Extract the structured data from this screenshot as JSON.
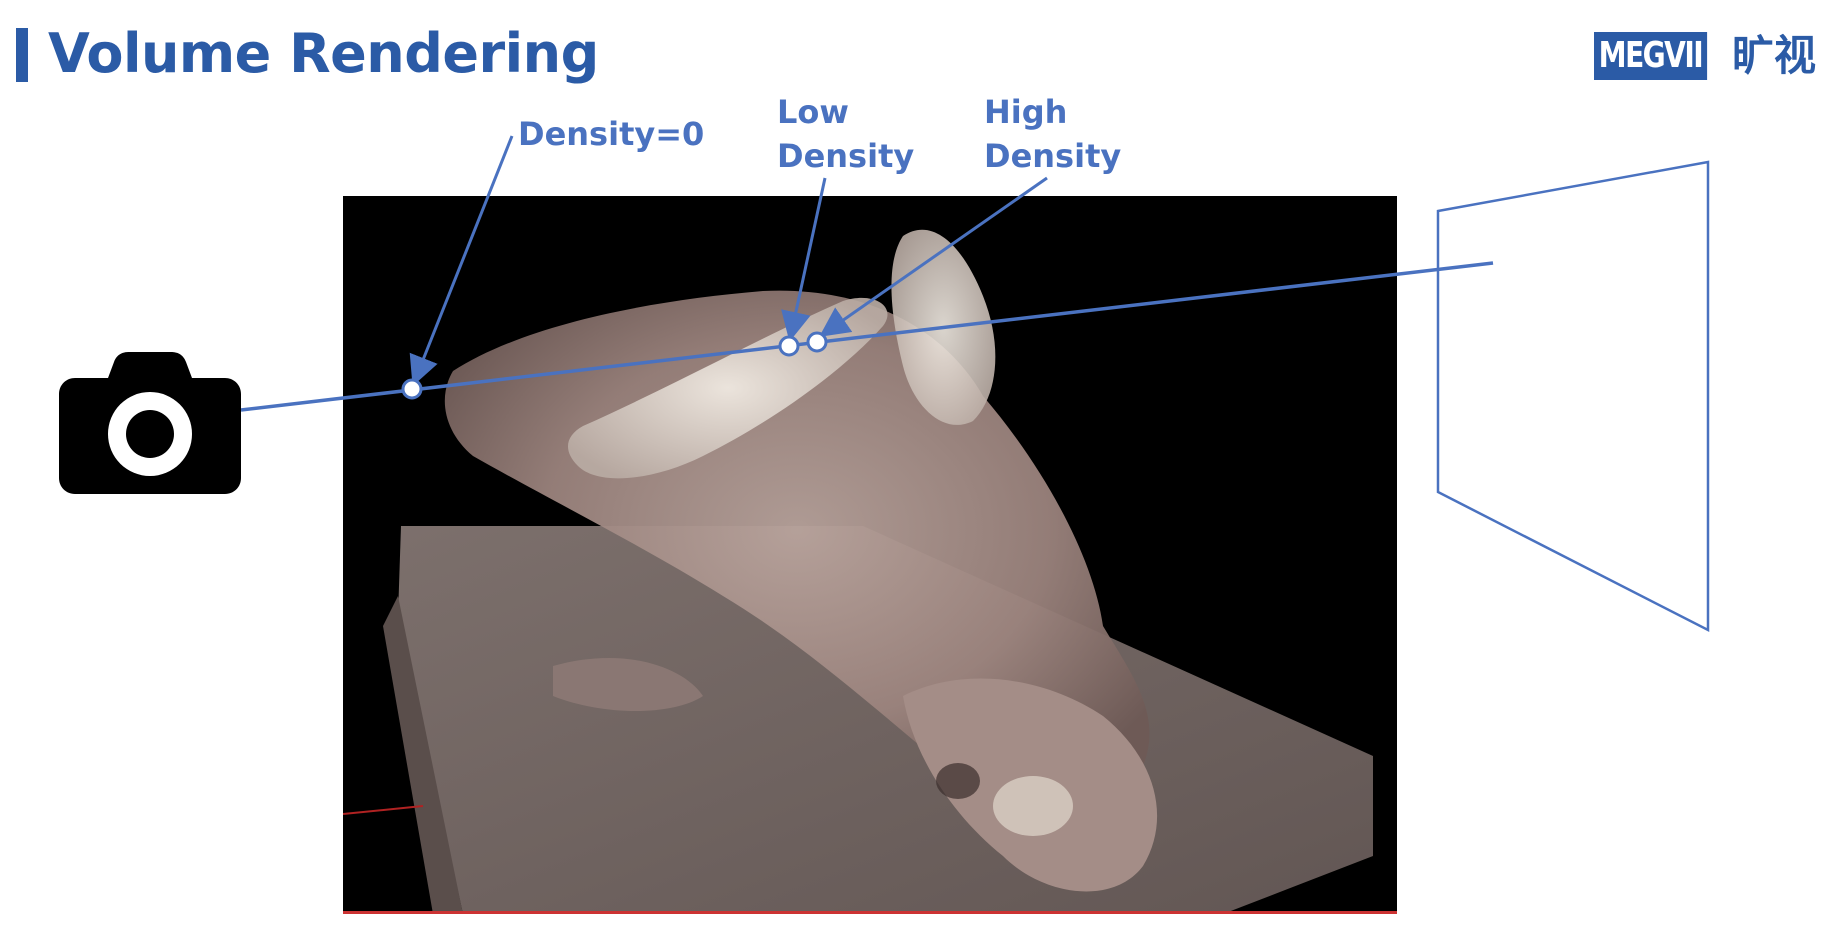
{
  "slide": {
    "title": "Volume Rendering"
  },
  "logo": {
    "text": "MEGVII",
    "cn_text": "旷视"
  },
  "labels": {
    "density_zero": "Density=0",
    "low_density": [
      "Low",
      "Density"
    ],
    "high_density": [
      "High",
      "Density"
    ]
  },
  "icons": {
    "camera": "camera-icon",
    "image_plane": "image-plane-icon"
  },
  "colors": {
    "title_blue": "#2b5ba6",
    "label_blue": "#4a72c0",
    "ray_blue": "#4a72c0",
    "panel_bg": "#000000"
  }
}
